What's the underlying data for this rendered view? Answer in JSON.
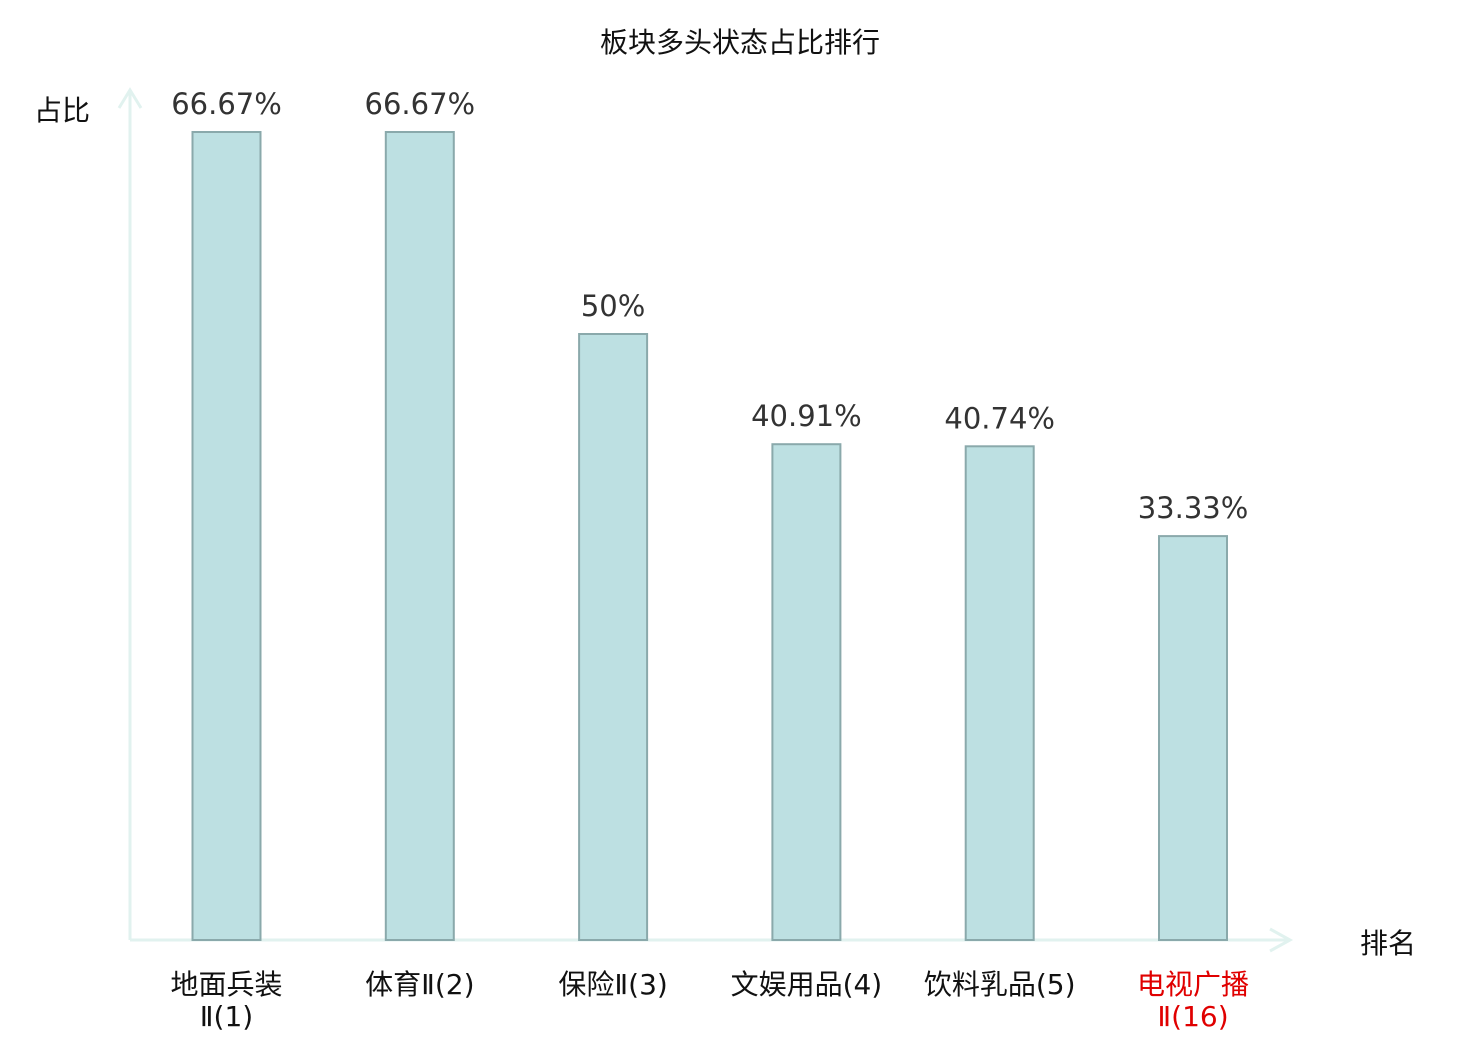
{
  "chart_data": {
    "type": "bar",
    "title": "板块多头状态占比排行",
    "ylabel": "占比",
    "xlabel": "排名",
    "ylim": [
      0,
      100
    ],
    "grid": false,
    "categories": [
      [
        "地面兵装",
        "Ⅱ(1)"
      ],
      [
        "体育Ⅱ(2)"
      ],
      [
        "保险Ⅱ(3)"
      ],
      [
        "文娱用品(4)"
      ],
      [
        "饮料乳品(5)"
      ],
      [
        "电视广播",
        "Ⅱ(16)"
      ]
    ],
    "values": [
      66.67,
      66.67,
      50,
      40.91,
      40.74,
      33.33
    ],
    "value_labels": [
      "66.67%",
      "66.67%",
      "50%",
      "40.91%",
      "40.74%",
      "33.33%"
    ],
    "highlight_index": 5,
    "colors": {
      "bar_fill": "#bde0e2",
      "bar_stroke": "#8aa9ab",
      "axis": "#e1f2ef",
      "text": "#333333",
      "label": "#111111",
      "highlight": "#e00000"
    }
  }
}
